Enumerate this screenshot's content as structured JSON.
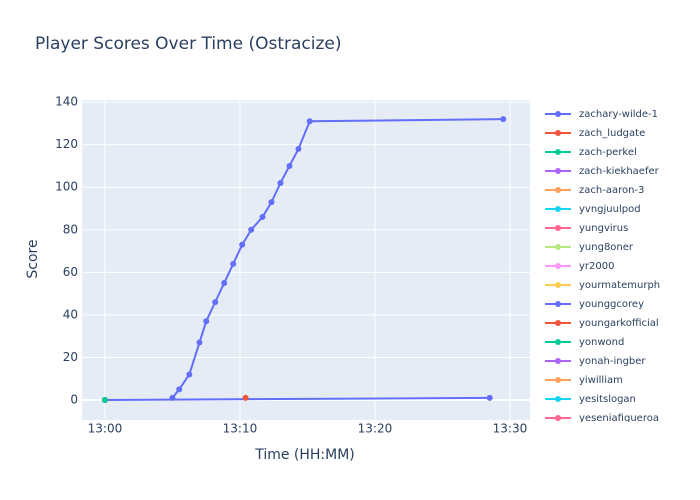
{
  "chart_data": {
    "type": "line",
    "title": "Player Scores Over Time (Ostracize)",
    "x_label": "Time (HH:MM)",
    "y_label": "Score",
    "xlim": [
      "12:58:18",
      "13:31:29"
    ],
    "xticks": [
      "13:00",
      "13:10",
      "13:20",
      "13:30"
    ],
    "ylim": [
      -9.4,
      141
    ],
    "yticks": [
      0,
      20,
      40,
      60,
      80,
      100,
      120,
      140
    ],
    "grid": true,
    "series": [
      {
        "name": "zachary-wilde-1",
        "color": "#636efa",
        "x": [
          "13:05:00",
          "13:05:30",
          "13:06:15",
          "13:07:00",
          "13:07:30",
          "13:08:10",
          "13:08:50",
          "13:09:30",
          "13:10:10",
          "13:10:50",
          "13:11:40",
          "13:12:20",
          "13:13:00",
          "13:13:40",
          "13:14:20",
          "13:15:10",
          "13:29:30"
        ],
        "values": [
          1,
          5,
          12,
          27,
          37,
          46,
          55,
          64,
          73,
          80,
          86,
          93,
          102,
          110,
          118,
          131,
          132
        ]
      },
      {
        "name": "zach_ludgate",
        "color": "#EF553B",
        "x": [
          "13:10:25"
        ],
        "values": [
          1
        ]
      },
      {
        "name": "zach-perkel",
        "color": "#00cc96",
        "x": [
          "13:00:00"
        ],
        "values": [
          0
        ]
      },
      {
        "name": "zach-kiekhaefer",
        "color": "#ab63fa",
        "x": [
          "13:00:00"
        ],
        "values": [
          0
        ]
      },
      {
        "name": "zach-aaron-3",
        "color": "#FFA15A",
        "x": [
          "13:00:00"
        ],
        "values": [
          0
        ]
      },
      {
        "name": "yvngjuulpod",
        "color": "#19d3f3",
        "x": [
          "13:00:00"
        ],
        "values": [
          0
        ]
      },
      {
        "name": "yungvirus",
        "color": "#FF6692",
        "x": [
          "13:00:00"
        ],
        "values": [
          0
        ]
      },
      {
        "name": "yung8oner",
        "color": "#B6E880",
        "x": [
          "13:00:00"
        ],
        "values": [
          0
        ]
      },
      {
        "name": "yr2000",
        "color": "#FF97FF",
        "x": [
          "13:00:00"
        ],
        "values": [
          0
        ]
      },
      {
        "name": "yourmatemurph",
        "color": "#FECB52",
        "x": [
          "13:00:00"
        ],
        "values": [
          0
        ]
      },
      {
        "name": "younggcorey",
        "color": "#636efa",
        "x": [
          "13:00:00",
          "13:28:30"
        ],
        "values": [
          0,
          1
        ]
      },
      {
        "name": "youngarkofficial",
        "color": "#EF553B",
        "x": [
          "13:00:00"
        ],
        "values": [
          0
        ]
      },
      {
        "name": "yonwond",
        "color": "#00cc96",
        "x": [
          "13:00:00"
        ],
        "values": [
          0
        ]
      },
      {
        "name": "yonah-ingber",
        "color": "#ab63fa",
        "x": [
          "13:00:00"
        ],
        "values": [
          0
        ]
      },
      {
        "name": "yiwilliam",
        "color": "#FFA15A",
        "x": [
          "13:00:00"
        ],
        "values": [
          0
        ]
      },
      {
        "name": "yesitslogan",
        "color": "#19d3f3",
        "x": [
          "13:00:00"
        ],
        "values": [
          0
        ]
      },
      {
        "name": "yeseniafigueroa",
        "color": "#FF6692",
        "x": [
          "13:00:00"
        ],
        "values": [
          0
        ]
      }
    ]
  }
}
